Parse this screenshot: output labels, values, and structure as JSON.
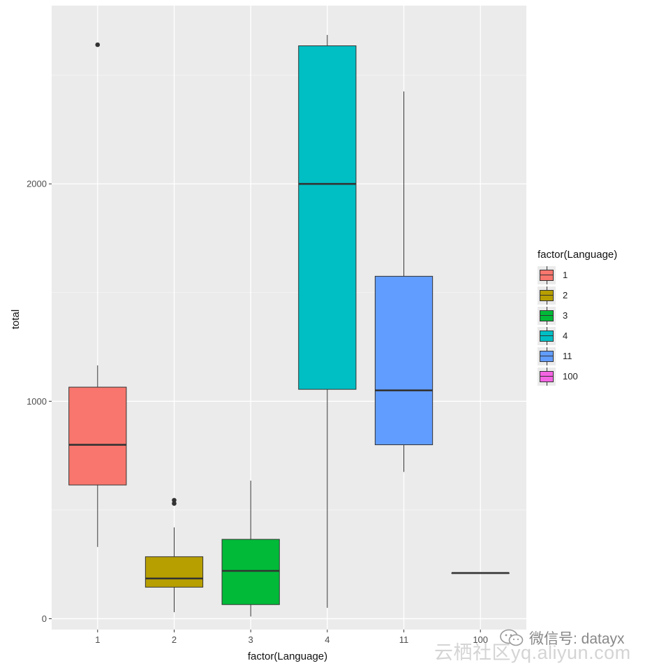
{
  "chart_data": {
    "type": "boxplot",
    "title": "",
    "xlabel": "factor(Language)",
    "ylabel": "total",
    "categories": [
      "1",
      "2",
      "3",
      "4",
      "11",
      "100"
    ],
    "ylim": [
      -50,
      2820
    ],
    "yticks": [
      0,
      1000,
      2000
    ],
    "ytick_labels": [
      "0",
      "1000",
      "2000"
    ],
    "grid": true,
    "legend_position": "right",
    "legend": {
      "title": "factor(Language)",
      "labels": [
        "1",
        "2",
        "3",
        "4",
        "11",
        "100"
      ]
    },
    "colors": [
      "#F8766D",
      "#B79F00",
      "#00BA38",
      "#00BFC4",
      "#619CFF",
      "#F564E3"
    ],
    "boxes": [
      {
        "category": "1",
        "whisker_low": 330,
        "q1": 615,
        "median": 800,
        "q3": 1065,
        "whisker_high": 1165,
        "outliers": [
          2640
        ]
      },
      {
        "category": "2",
        "whisker_low": 30,
        "q1": 145,
        "median": 185,
        "q3": 285,
        "whisker_high": 420,
        "outliers": [
          530,
          545
        ]
      },
      {
        "category": "3",
        "whisker_low": 10,
        "q1": 65,
        "median": 220,
        "q3": 365,
        "whisker_high": 635,
        "outliers": []
      },
      {
        "category": "4",
        "whisker_low": 50,
        "q1": 1055,
        "median": 2000,
        "q3": 2635,
        "whisker_high": 2685,
        "outliers": []
      },
      {
        "category": "11",
        "whisker_low": 675,
        "q1": 800,
        "median": 1050,
        "q3": 1575,
        "whisker_high": 2425,
        "outliers": []
      },
      {
        "category": "100",
        "whisker_low": 210,
        "q1": 210,
        "median": 210,
        "q3": 210,
        "whisker_high": 210,
        "outliers": []
      }
    ]
  },
  "watermark": {
    "text": "微信号: datayx",
    "text2": "云栖社区yq.aliyun.com",
    "icon": "wechat-icon"
  }
}
